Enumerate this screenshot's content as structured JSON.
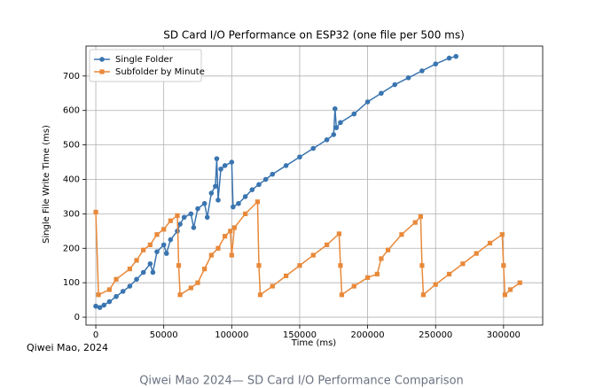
{
  "chart_data": {
    "type": "line",
    "title": "SD Card I/O Performance on ESP32 (one file per 500 ms)",
    "xlabel": "Time (ms)",
    "ylabel": "Single File Write Time (ms)",
    "annotation": "Qiwei Mao, 2024",
    "caption": "Qiwei Mao 2024— SD Card I/O Performance Comparison",
    "xlim": [
      -7200,
      328800
    ],
    "ylim": [
      -23,
      787
    ],
    "xticks": [
      0,
      50000,
      100000,
      150000,
      200000,
      250000,
      300000
    ],
    "yticks": [
      0,
      100,
      200,
      300,
      400,
      500,
      600,
      700
    ],
    "grid": true,
    "legend": "upper left",
    "series": [
      {
        "name": "Single Folder",
        "color": "#3a75b0",
        "marker": "circle",
        "x": [
          0,
          3000,
          6000,
          10000,
          15000,
          20000,
          25000,
          30000,
          35000,
          40000,
          42000,
          45000,
          50000,
          52000,
          55000,
          60000,
          62000,
          65000,
          70000,
          72000,
          75000,
          80000,
          82000,
          85000,
          88000,
          89000,
          90000,
          92000,
          95000,
          100000,
          101000,
          105000,
          110000,
          115000,
          120000,
          125000,
          130000,
          140000,
          150000,
          160000,
          170000,
          175000,
          176000,
          177000,
          180000,
          190000,
          200000,
          210000,
          220000,
          230000,
          240000,
          250000,
          260000,
          265000
        ],
        "values": [
          32,
          28,
          35,
          45,
          60,
          75,
          90,
          110,
          130,
          155,
          130,
          190,
          210,
          185,
          225,
          250,
          270,
          290,
          300,
          260,
          315,
          330,
          290,
          360,
          380,
          460,
          340,
          430,
          440,
          450,
          320,
          330,
          350,
          370,
          385,
          400,
          415,
          440,
          465,
          490,
          515,
          530,
          605,
          550,
          565,
          590,
          625,
          650,
          675,
          695,
          715,
          735,
          752,
          757
        ]
      },
      {
        "name": "Subfolder by Minute",
        "color": "#e8893a",
        "marker": "square",
        "x": [
          0,
          2000,
          10000,
          15000,
          25000,
          30000,
          35000,
          40000,
          45000,
          50000,
          55000,
          60000,
          61000,
          62000,
          70000,
          75000,
          80000,
          85000,
          90000,
          95000,
          99000,
          100000,
          102000,
          110000,
          119000,
          120000,
          121000,
          130000,
          140000,
          150000,
          160000,
          170000,
          179000,
          180000,
          181000,
          190000,
          200000,
          207000,
          210000,
          215000,
          225000,
          235000,
          239000,
          240000,
          241000,
          250000,
          260000,
          270000,
          280000,
          290000,
          299000,
          300000,
          301000,
          305000,
          312000
        ],
        "values": [
          305,
          65,
          80,
          110,
          140,
          165,
          195,
          210,
          240,
          255,
          280,
          295,
          150,
          65,
          85,
          100,
          140,
          180,
          200,
          235,
          250,
          180,
          260,
          300,
          335,
          150,
          65,
          90,
          120,
          150,
          180,
          210,
          242,
          150,
          65,
          90,
          115,
          125,
          170,
          195,
          240,
          275,
          292,
          150,
          65,
          95,
          125,
          155,
          185,
          215,
          240,
          150,
          65,
          80,
          100
        ]
      }
    ]
  }
}
